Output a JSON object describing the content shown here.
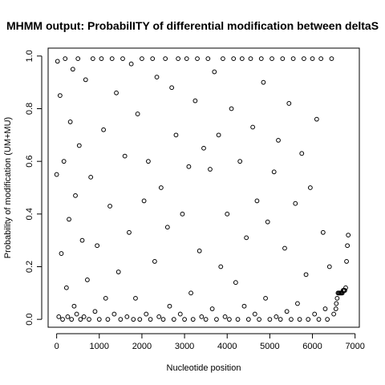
{
  "chart_data": {
    "type": "scatter",
    "title": "MHMM output: ProbabilITY of differential modification between deltaS",
    "xlabel": "Nucleotide position",
    "ylabel": "Probability of modification (UM+MU)",
    "xlim": [
      -200,
      7100
    ],
    "ylim": [
      -0.03,
      1.03
    ],
    "xticks": [
      0,
      1000,
      2000,
      3000,
      4000,
      5000,
      6000,
      7000
    ],
    "yticks": [
      0.0,
      0.2,
      0.4,
      0.6,
      0.8,
      1.0
    ],
    "xtick_labels": [
      "0",
      "1000",
      "2000",
      "3000",
      "4000",
      "5000",
      "6000",
      "7000"
    ],
    "ytick_labels": [
      "0.0",
      "0.2",
      "0.4",
      "0.6",
      "0.8",
      "1.0"
    ],
    "grid": false,
    "legend": "none",
    "marker": "open-circle",
    "color": "#000000",
    "series": [
      {
        "x": [
          0,
          20,
          50,
          80,
          110,
          140,
          170,
          200,
          230,
          260,
          290,
          320,
          350,
          380,
          410,
          440,
          470,
          500,
          530,
          560,
          600,
          640,
          680,
          720,
          760,
          800,
          850,
          900,
          950,
          1000,
          1050,
          1100,
          1150,
          1200,
          1250,
          1300,
          1350,
          1400,
          1450,
          1500,
          1550,
          1600,
          1650,
          1700,
          1750,
          1800,
          1850,
          1900,
          1950,
          2000,
          2050,
          2100,
          2150,
          2200,
          2250,
          2300,
          2350,
          2400,
          2450,
          2500,
          2550,
          2600,
          2650,
          2700,
          2750,
          2800,
          2850,
          2900,
          2950,
          3000,
          3050,
          3100,
          3150,
          3200,
          3250,
          3300,
          3350,
          3400,
          3450,
          3500,
          3550,
          3600,
          3650,
          3700,
          3750,
          3800,
          3850,
          3900,
          3950,
          4000,
          4050,
          4100,
          4150,
          4200,
          4250,
          4300,
          4350,
          4400,
          4450,
          4500,
          4550,
          4600,
          4650,
          4700,
          4750,
          4800,
          4850,
          4900,
          4950,
          5000,
          5050,
          5100,
          5150,
          5200,
          5250,
          5300,
          5350,
          5400,
          5450,
          5500,
          5550,
          5600,
          5650,
          5700,
          5750,
          5800,
          5850,
          5900,
          5950,
          6000,
          6050,
          6100,
          6150,
          6200,
          6250,
          6300,
          6350,
          6400,
          6450,
          6500,
          6550,
          6560,
          6580,
          6600,
          6620,
          6640,
          6660,
          6680,
          6700,
          6720,
          6740,
          6760,
          6780,
          6800,
          6820,
          6840
        ],
        "y": [
          0.55,
          0.98,
          0.01,
          0.85,
          0.25,
          0.0,
          0.6,
          0.99,
          0.12,
          0.01,
          0.38,
          0.75,
          0.0,
          0.95,
          0.05,
          0.47,
          0.02,
          0.99,
          0.66,
          0.0,
          0.3,
          0.01,
          0.91,
          0.15,
          0.0,
          0.54,
          0.99,
          0.03,
          0.28,
          0.0,
          0.99,
          0.72,
          0.08,
          0.0,
          0.43,
          0.99,
          0.02,
          0.86,
          0.18,
          0.0,
          0.99,
          0.62,
          0.01,
          0.33,
          0.97,
          0.0,
          0.08,
          0.78,
          0.0,
          0.99,
          0.45,
          0.02,
          0.6,
          0.0,
          0.99,
          0.22,
          0.92,
          0.01,
          0.5,
          0.0,
          0.99,
          0.35,
          0.05,
          0.88,
          0.0,
          0.7,
          0.99,
          0.02,
          0.4,
          0.0,
          0.99,
          0.58,
          0.1,
          0.0,
          0.83,
          0.99,
          0.26,
          0.01,
          0.65,
          0.0,
          0.99,
          0.57,
          0.04,
          0.94,
          0.0,
          0.7,
          0.2,
          0.99,
          0.01,
          0.4,
          0.0,
          0.8,
          0.99,
          0.14,
          0.0,
          0.6,
          0.99,
          0.05,
          0.31,
          0.0,
          0.99,
          0.73,
          0.02,
          0.45,
          0.0,
          0.99,
          0.9,
          0.08,
          0.37,
          0.0,
          0.99,
          0.56,
          0.01,
          0.68,
          0.0,
          0.99,
          0.27,
          0.03,
          0.82,
          0.0,
          0.99,
          0.44,
          0.06,
          0.0,
          0.63,
          0.99,
          0.17,
          0.0,
          0.5,
          0.99,
          0.02,
          0.76,
          0.0,
          0.99,
          0.33,
          0.04,
          0.0,
          0.2,
          0.99,
          0.02,
          0.04,
          0.06,
          0.08,
          0.1,
          0.1,
          0.1,
          0.1,
          0.1,
          0.1,
          0.11,
          0.11,
          0.11,
          0.12,
          0.22,
          0.28,
          0.32
        ]
      }
    ]
  }
}
